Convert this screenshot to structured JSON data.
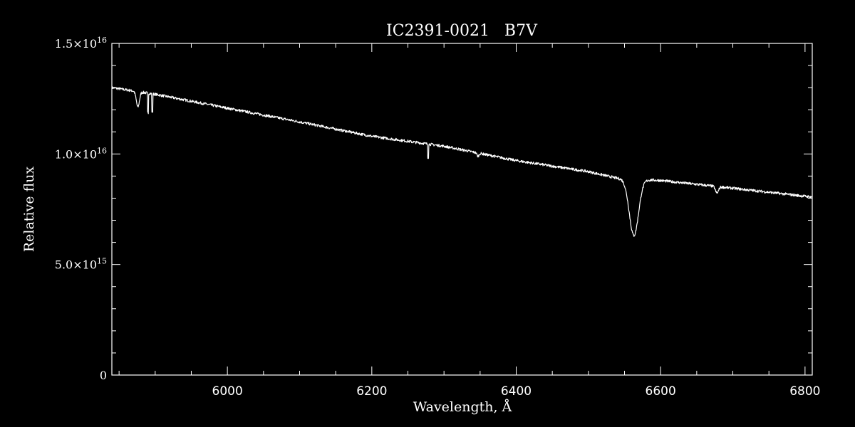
{
  "chart_data": {
    "type": "line",
    "title": "IC2391-0021   B7V",
    "xlabel": "Wavelength, Å",
    "ylabel": "Relative flux",
    "xlim": [
      5840,
      6810
    ],
    "ylim": [
      0,
      1.5e+16
    ],
    "x_ticks": [
      {
        "value": 6000,
        "label": "6000"
      },
      {
        "value": 6200,
        "label": "6200"
      },
      {
        "value": 6400,
        "label": "6400"
      },
      {
        "value": 6600,
        "label": "6600"
      },
      {
        "value": 6800,
        "label": "6800"
      }
    ],
    "y_ticks": [
      {
        "value": 0,
        "mant": "0",
        "exp": ""
      },
      {
        "value": 5000000000000000.0,
        "mant": "5.0×10",
        "exp": "15"
      },
      {
        "value": 1e+16,
        "mant": "1.0×10",
        "exp": "16"
      },
      {
        "value": 1.5e+16,
        "mant": "1.5×10",
        "exp": "16"
      }
    ],
    "continuum": [
      [
        5840,
        1.3e+16
      ],
      [
        5900,
        1.27e+16
      ],
      [
        6000,
        1.207e+16
      ],
      [
        6100,
        1.145e+16
      ],
      [
        6200,
        1.08e+16
      ],
      [
        6300,
        1.035e+16
      ],
      [
        6400,
        9700000000000000.0
      ],
      [
        6500,
        9200000000000000.0
      ],
      [
        6540,
        8900000000000000.0
      ],
      [
        6600,
        8800000000000000.0
      ],
      [
        6700,
        8450000000000000.0
      ],
      [
        6810,
        8050000000000000.0
      ]
    ],
    "absorption_lines": [
      {
        "center": 6563,
        "depth": 2550000000000000.0,
        "width": 9
      },
      {
        "center": 5876,
        "depth": 700000000000000.0,
        "width": 3
      },
      {
        "center": 6678,
        "depth": 300000000000000.0,
        "width": 3
      },
      {
        "center": 6347,
        "depth": 150000000000000.0,
        "width": 2
      }
    ],
    "spikes": [
      {
        "x": 5890,
        "depth": 900000000000000.0
      },
      {
        "x": 5896,
        "depth": 800000000000000.0
      },
      {
        "x": 6278,
        "depth": 600000000000000.0
      }
    ],
    "grid": false,
    "legend": "none"
  }
}
